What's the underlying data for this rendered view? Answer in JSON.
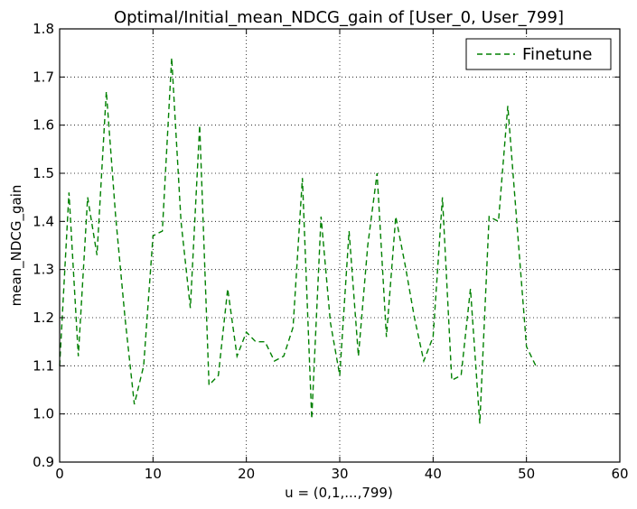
{
  "chart_data": {
    "type": "line",
    "title": "Optimal/Initial_mean_NDCG_gain of [User_0, User_799]",
    "xlabel": "u = (0,1,...,799)",
    "ylabel": "mean_NDCG_gain",
    "xlim": [
      0,
      60
    ],
    "ylim": [
      0.9,
      1.8
    ],
    "xticks": [
      0,
      10,
      20,
      30,
      40,
      50,
      60
    ],
    "yticks": [
      0.9,
      1.0,
      1.1,
      1.2,
      1.3,
      1.4,
      1.5,
      1.6,
      1.7,
      1.8
    ],
    "grid": true,
    "legend_position": "top-right",
    "series": [
      {
        "name": "Finetune",
        "color": "#008000",
        "linestyle": "dashed",
        "x": [
          0,
          1,
          2,
          3,
          4,
          5,
          6,
          7,
          8,
          9,
          10,
          11,
          12,
          13,
          14,
          15,
          16,
          17,
          18,
          19,
          20,
          21,
          22,
          23,
          24,
          25,
          26,
          27,
          28,
          29,
          30,
          31,
          32,
          33,
          34,
          35,
          36,
          37,
          38,
          39,
          40,
          41,
          42,
          43,
          44,
          45,
          46,
          47,
          48,
          49,
          50,
          51
        ],
        "y": [
          1.1,
          1.46,
          1.12,
          1.45,
          1.33,
          1.67,
          1.41,
          1.2,
          1.02,
          1.1,
          1.37,
          1.38,
          1.74,
          1.4,
          1.22,
          1.6,
          1.06,
          1.08,
          1.26,
          1.12,
          1.17,
          1.15,
          1.15,
          1.11,
          1.12,
          1.18,
          1.49,
          0.99,
          1.41,
          1.19,
          1.08,
          1.38,
          1.12,
          1.35,
          1.5,
          1.16,
          1.41,
          1.31,
          1.2,
          1.11,
          1.16,
          1.45,
          1.07,
          1.08,
          1.26,
          0.98,
          1.41,
          1.4,
          1.64,
          1.39,
          1.14,
          1.1
        ]
      }
    ]
  }
}
